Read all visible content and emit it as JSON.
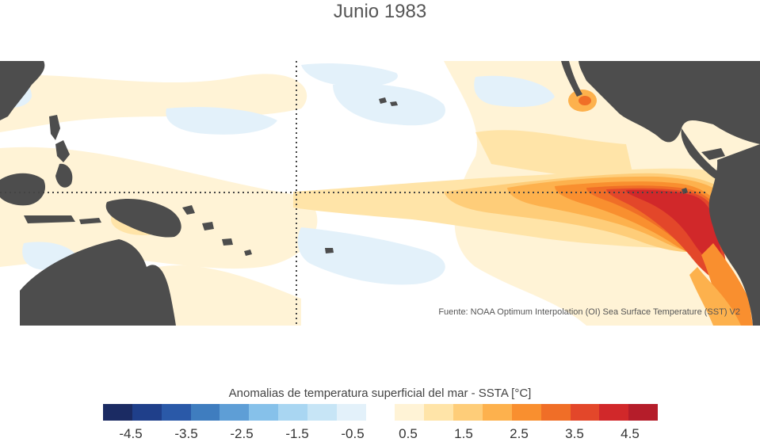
{
  "title": "Junio 1983",
  "source": "Fuente: NOAA Optimum Interpolation (OI) Sea Surface Temperature (SST) V2",
  "colorbar": {
    "label": "Anomalias de temperatura superficial del mar - SSTA  [°C]",
    "ticks": [
      "-4.5",
      "-3.5",
      "-2.5",
      "-1.5",
      "-0.5",
      "0.5",
      "1.5",
      "2.5",
      "3.5",
      "4.5"
    ],
    "tick_values": [
      -4.5,
      -3.5,
      -2.5,
      -1.5,
      -0.5,
      0.5,
      1.5,
      2.5,
      3.5,
      4.5
    ],
    "range": [
      -4.5,
      4.5
    ],
    "colors": [
      "#1b2b63",
      "#1f3f8a",
      "#2a59a8",
      "#3f7dbf",
      "#5e9ed6",
      "#86c1ea",
      "#a9d6f2",
      "#c7e5f6",
      "#e3f1fa",
      "#ffffff",
      "#fff3d6",
      "#ffe4a8",
      "#fecd79",
      "#fdb14d",
      "#f98f2f",
      "#f06e27",
      "#e3472a",
      "#d1282a",
      "#b51d2a"
    ]
  },
  "map": {
    "land_color": "#4d4d4d",
    "reference_lines": [
      "equator",
      "dateline-180"
    ]
  }
}
